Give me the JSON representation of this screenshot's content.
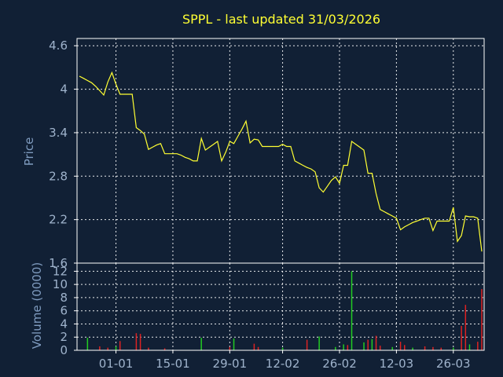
{
  "chart_data": {
    "type": "line+bar",
    "title": "SPPL - last updated 31/03/2026",
    "price_panel": {
      "ylabel": "Price",
      "ylim": [
        1.6,
        4.7
      ],
      "yticks": [
        "4.6",
        "4",
        "3.4",
        "2.8",
        "2.2",
        "1.6"
      ],
      "ytick_values": [
        4.6,
        4.0,
        3.4,
        2.8,
        2.2,
        1.6
      ],
      "series": [
        {
          "name": "",
          "color": "#ffff33",
          "values": [
            4.18,
            4.15,
            4.12,
            4.09,
            4.04,
            3.98,
            3.92,
            4.1,
            4.23,
            4.07,
            3.93,
            3.93,
            3.93,
            3.93,
            3.47,
            3.43,
            3.38,
            3.17,
            3.2,
            3.23,
            3.25,
            3.11,
            3.11,
            3.11,
            3.11,
            3.09,
            3.06,
            3.04,
            3.01,
            3.01,
            3.32,
            3.16,
            3.2,
            3.24,
            3.28,
            3.01,
            3.13,
            3.28,
            3.25,
            3.35,
            3.45,
            3.56,
            3.26,
            3.31,
            3.3,
            3.21,
            3.21,
            3.21,
            3.21,
            3.21,
            3.24,
            3.21,
            3.21,
            3.01,
            2.98,
            2.95,
            2.92,
            2.9,
            2.86,
            2.64,
            2.58,
            2.66,
            2.74,
            2.79,
            2.7,
            2.95,
            2.95,
            3.28,
            3.24,
            3.2,
            3.16,
            2.84,
            2.84,
            2.56,
            2.34,
            2.31,
            2.28,
            2.25,
            2.22,
            2.06,
            2.1,
            2.13,
            2.16,
            2.18,
            2.2,
            2.22,
            2.22,
            2.05,
            2.18,
            2.18,
            2.18,
            2.18,
            2.37,
            1.9,
            1.98,
            2.25,
            2.24,
            2.24,
            2.22,
            1.76
          ]
        }
      ]
    },
    "volume_panel": {
      "ylabel": "Volume (0000)",
      "ylim": [
        0,
        13
      ],
      "yticks": [
        "12",
        "10",
        "8",
        "6",
        "4",
        "2",
        "0"
      ],
      "ytick_values": [
        12,
        10,
        8,
        6,
        4,
        2,
        0
      ],
      "up_color": "#22cc22",
      "down_color": "#dd2222",
      "bars": [
        {
          "i": 2,
          "v": 1.9,
          "up": true
        },
        {
          "i": 5,
          "v": 0.6,
          "up": false
        },
        {
          "i": 7,
          "v": 0.4,
          "up": false
        },
        {
          "i": 9,
          "v": 0.6,
          "up": true
        },
        {
          "i": 10,
          "v": 1.4,
          "up": false
        },
        {
          "i": 14,
          "v": 2.6,
          "up": false
        },
        {
          "i": 15,
          "v": 2.5,
          "up": false
        },
        {
          "i": 17,
          "v": 0.4,
          "up": false
        },
        {
          "i": 21,
          "v": 0.3,
          "up": false
        },
        {
          "i": 30,
          "v": 1.9,
          "up": true
        },
        {
          "i": 37,
          "v": 0.5,
          "up": false
        },
        {
          "i": 38,
          "v": 1.8,
          "up": true
        },
        {
          "i": 43,
          "v": 1.0,
          "up": false
        },
        {
          "i": 44,
          "v": 0.5,
          "up": false
        },
        {
          "i": 50,
          "v": 0.4,
          "up": true
        },
        {
          "i": 56,
          "v": 1.6,
          "up": false
        },
        {
          "i": 59,
          "v": 2.1,
          "up": true
        },
        {
          "i": 63,
          "v": 0.5,
          "up": true
        },
        {
          "i": 65,
          "v": 0.9,
          "up": true
        },
        {
          "i": 66,
          "v": 0.8,
          "up": false
        },
        {
          "i": 67,
          "v": 12.0,
          "up": true
        },
        {
          "i": 70,
          "v": 1.2,
          "up": true
        },
        {
          "i": 71,
          "v": 1.6,
          "up": false
        },
        {
          "i": 72,
          "v": 1.7,
          "up": true
        },
        {
          "i": 73,
          "v": 2.2,
          "up": false
        },
        {
          "i": 74,
          "v": 0.7,
          "up": false
        },
        {
          "i": 77,
          "v": 0.5,
          "up": true
        },
        {
          "i": 79,
          "v": 1.3,
          "up": false
        },
        {
          "i": 80,
          "v": 0.8,
          "up": false
        },
        {
          "i": 82,
          "v": 0.4,
          "up": true
        },
        {
          "i": 85,
          "v": 0.6,
          "up": false
        },
        {
          "i": 87,
          "v": 0.5,
          "up": false
        },
        {
          "i": 89,
          "v": 0.4,
          "up": false
        },
        {
          "i": 92,
          "v": 0.4,
          "up": true
        },
        {
          "i": 94,
          "v": 3.7,
          "up": false
        },
        {
          "i": 95,
          "v": 6.9,
          "up": false
        },
        {
          "i": 96,
          "v": 0.9,
          "up": true
        },
        {
          "i": 98,
          "v": 1.3,
          "up": false
        },
        {
          "i": 99,
          "v": 9.3,
          "up": false
        }
      ]
    },
    "x_axis": {
      "num_points": 100,
      "tick_labels": [
        "01-01",
        "15-01",
        "29-01",
        "12-02",
        "26-02",
        "12-03",
        "26-03"
      ],
      "tick_index": [
        9,
        23,
        37,
        50,
        64,
        78,
        92
      ]
    },
    "grid": true
  }
}
